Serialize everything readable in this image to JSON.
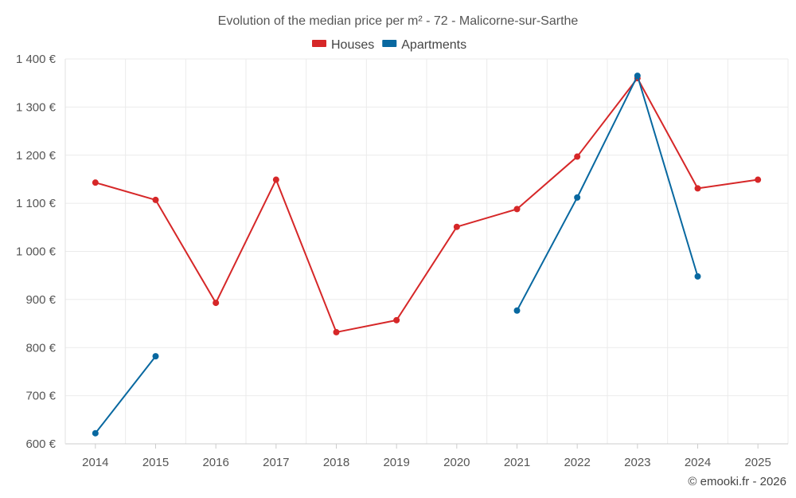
{
  "chart_data": {
    "type": "line",
    "title": "Evolution of the median price per m² - 72 - Malicorne-sur-Sarthe",
    "categories": [
      "2014",
      "2015",
      "2016",
      "2017",
      "2018",
      "2019",
      "2020",
      "2021",
      "2022",
      "2023",
      "2024",
      "2025"
    ],
    "y_ticks": [
      600,
      700,
      800,
      900,
      1000,
      1100,
      1200,
      1300,
      1400
    ],
    "y_tick_labels": [
      "600 €",
      "700 €",
      "800 €",
      "900 €",
      "1 000 €",
      "1 100 €",
      "1 200 €",
      "1 300 €",
      "1 400 €"
    ],
    "ylim": [
      600,
      1400
    ],
    "series": [
      {
        "name": "Houses",
        "color": "#d62728",
        "values": [
          1143,
          1107,
          893,
          1149,
          832,
          857,
          1051,
          1088,
          1197,
          1360,
          1131,
          1149
        ]
      },
      {
        "name": "Apartments",
        "color": "#0868a0",
        "values": [
          622,
          782,
          null,
          null,
          null,
          null,
          null,
          877,
          1112,
          1365,
          948,
          null
        ]
      }
    ],
    "legend_position": "top-center",
    "credit": "© emooki.fr - 2026"
  }
}
